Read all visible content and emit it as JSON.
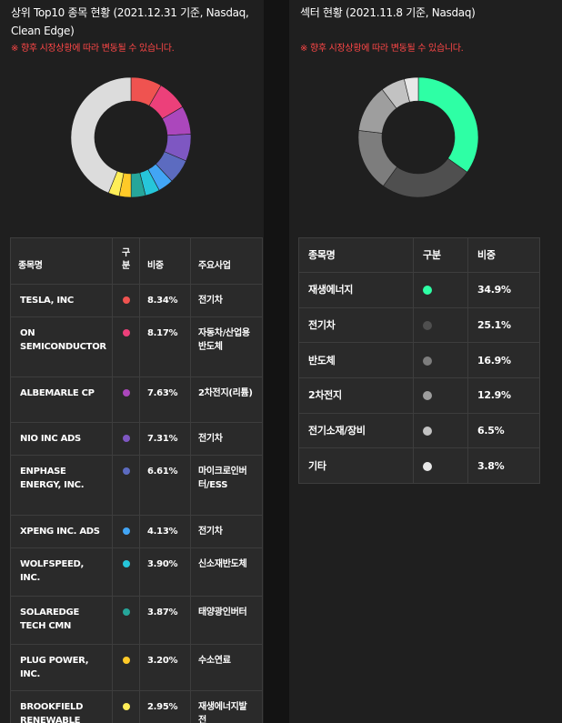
{
  "left": {
    "title": "상위 Top10 종목 현황 (2021.12.31 기준, Nasdaq, Clean Edge)",
    "notice": "※ 향후 시장상황에 따라 변동될 수 있습니다.",
    "headers": {
      "name": "종목명",
      "class": "구분",
      "weight": "비중",
      "business": "주요사업"
    },
    "rows": [
      {
        "name": "TESLA, INC",
        "weight": "8.34%",
        "business": "전기차",
        "color": "#ef5350"
      },
      {
        "name": "ON SEMICONDUCTOR",
        "weight": "8.17%",
        "business": "자동차/산업용 반도체",
        "color": "#ec407a"
      },
      {
        "name": "ALBEMARLE CP",
        "weight": "7.63%",
        "business": "2차전지(리튬)",
        "color": "#ab47bc"
      },
      {
        "name": "NIO INC ADS",
        "weight": "7.31%",
        "business": "전기차",
        "color": "#7e57c2"
      },
      {
        "name": "ENPHASE ENERGY, INC.",
        "weight": "6.61%",
        "business": "마이크로인버터/ESS",
        "color": "#5c6bc0"
      },
      {
        "name": "XPENG INC. ADS",
        "weight": "4.13%",
        "business": "전기차",
        "color": "#42a5f5"
      },
      {
        "name": "WOLFSPEED, INC.",
        "weight": "3.90%",
        "business": "신소재반도체",
        "color": "#26c6da"
      },
      {
        "name": "SOLAREDGE TECH CMN",
        "weight": "3.87%",
        "business": "태양광인버터",
        "color": "#26a69a"
      },
      {
        "name": "PLUG POWER, INC.",
        "weight": "3.20%",
        "business": "수소연료",
        "color": "#ffca28"
      },
      {
        "name": "BROOKFIELD RENEWABLE",
        "weight": "2.95%",
        "business": "재생에너지발전",
        "color": "#ffee58"
      }
    ],
    "remainder_color": "#dcdcdc"
  },
  "right": {
    "title": "섹터 현황 (2021.11.8 기준, Nasdaq)",
    "notice": "※ 향후 시장상황에 따라 변동될 수 있습니다.",
    "headers": {
      "name": "종목명",
      "class": "구분",
      "weight": "비중"
    },
    "rows": [
      {
        "name": "재생에너지",
        "weight": "34.9%",
        "color": "#2effa5"
      },
      {
        "name": "전기차",
        "weight": "25.1%",
        "color": "#4f4f4f"
      },
      {
        "name": "반도체",
        "weight": "16.9%",
        "color": "#7d7d7d"
      },
      {
        "name": "2차전지",
        "weight": "12.9%",
        "color": "#9e9e9e"
      },
      {
        "name": "전기소재/장비",
        "weight": "6.5%",
        "color": "#c2c2c2"
      },
      {
        "name": "기타",
        "weight": "3.8%",
        "color": "#e8e8e8"
      }
    ]
  },
  "chart_data": [
    {
      "type": "pie",
      "categories": [
        "TESLA, INC",
        "ON SEMICONDUCTOR",
        "ALBEMARLE CP",
        "NIO INC ADS",
        "ENPHASE ENERGY, INC.",
        "XPENG INC. ADS",
        "WOLFSPEED, INC.",
        "SOLAREDGE TECH CMN",
        "PLUG POWER, INC.",
        "BROOKFIELD RENEWABLE",
        ""
      ],
      "values": [
        8.34,
        8.17,
        7.63,
        7.31,
        6.61,
        4.13,
        3.9,
        3.87,
        3.2,
        2.95,
        43.89
      ],
      "colors": [
        "#ef5350",
        "#ec407a",
        "#ab47bc",
        "#7e57c2",
        "#5c6bc0",
        "#42a5f5",
        "#26c6da",
        "#26a69a",
        "#ffca28",
        "#ffee58",
        "#dcdcdc"
      ],
      "title": "상위 Top10 종목 현황 (2021.12.31 기준, Nasdaq, Clean Edge)",
      "legend": "none"
    },
    {
      "type": "pie",
      "categories": [
        "재생에너지",
        "전기차",
        "반도체",
        "2차전지",
        "전기소재/장비",
        "기타"
      ],
      "values": [
        34.9,
        25.1,
        16.9,
        12.9,
        6.5,
        3.8
      ],
      "colors": [
        "#2effa5",
        "#4f4f4f",
        "#7d7d7d",
        "#9e9e9e",
        "#c2c2c2",
        "#e8e8e8"
      ],
      "title": "섹터 현황 (2021.11.8 기준, Nasdaq)",
      "legend": "none"
    }
  ]
}
